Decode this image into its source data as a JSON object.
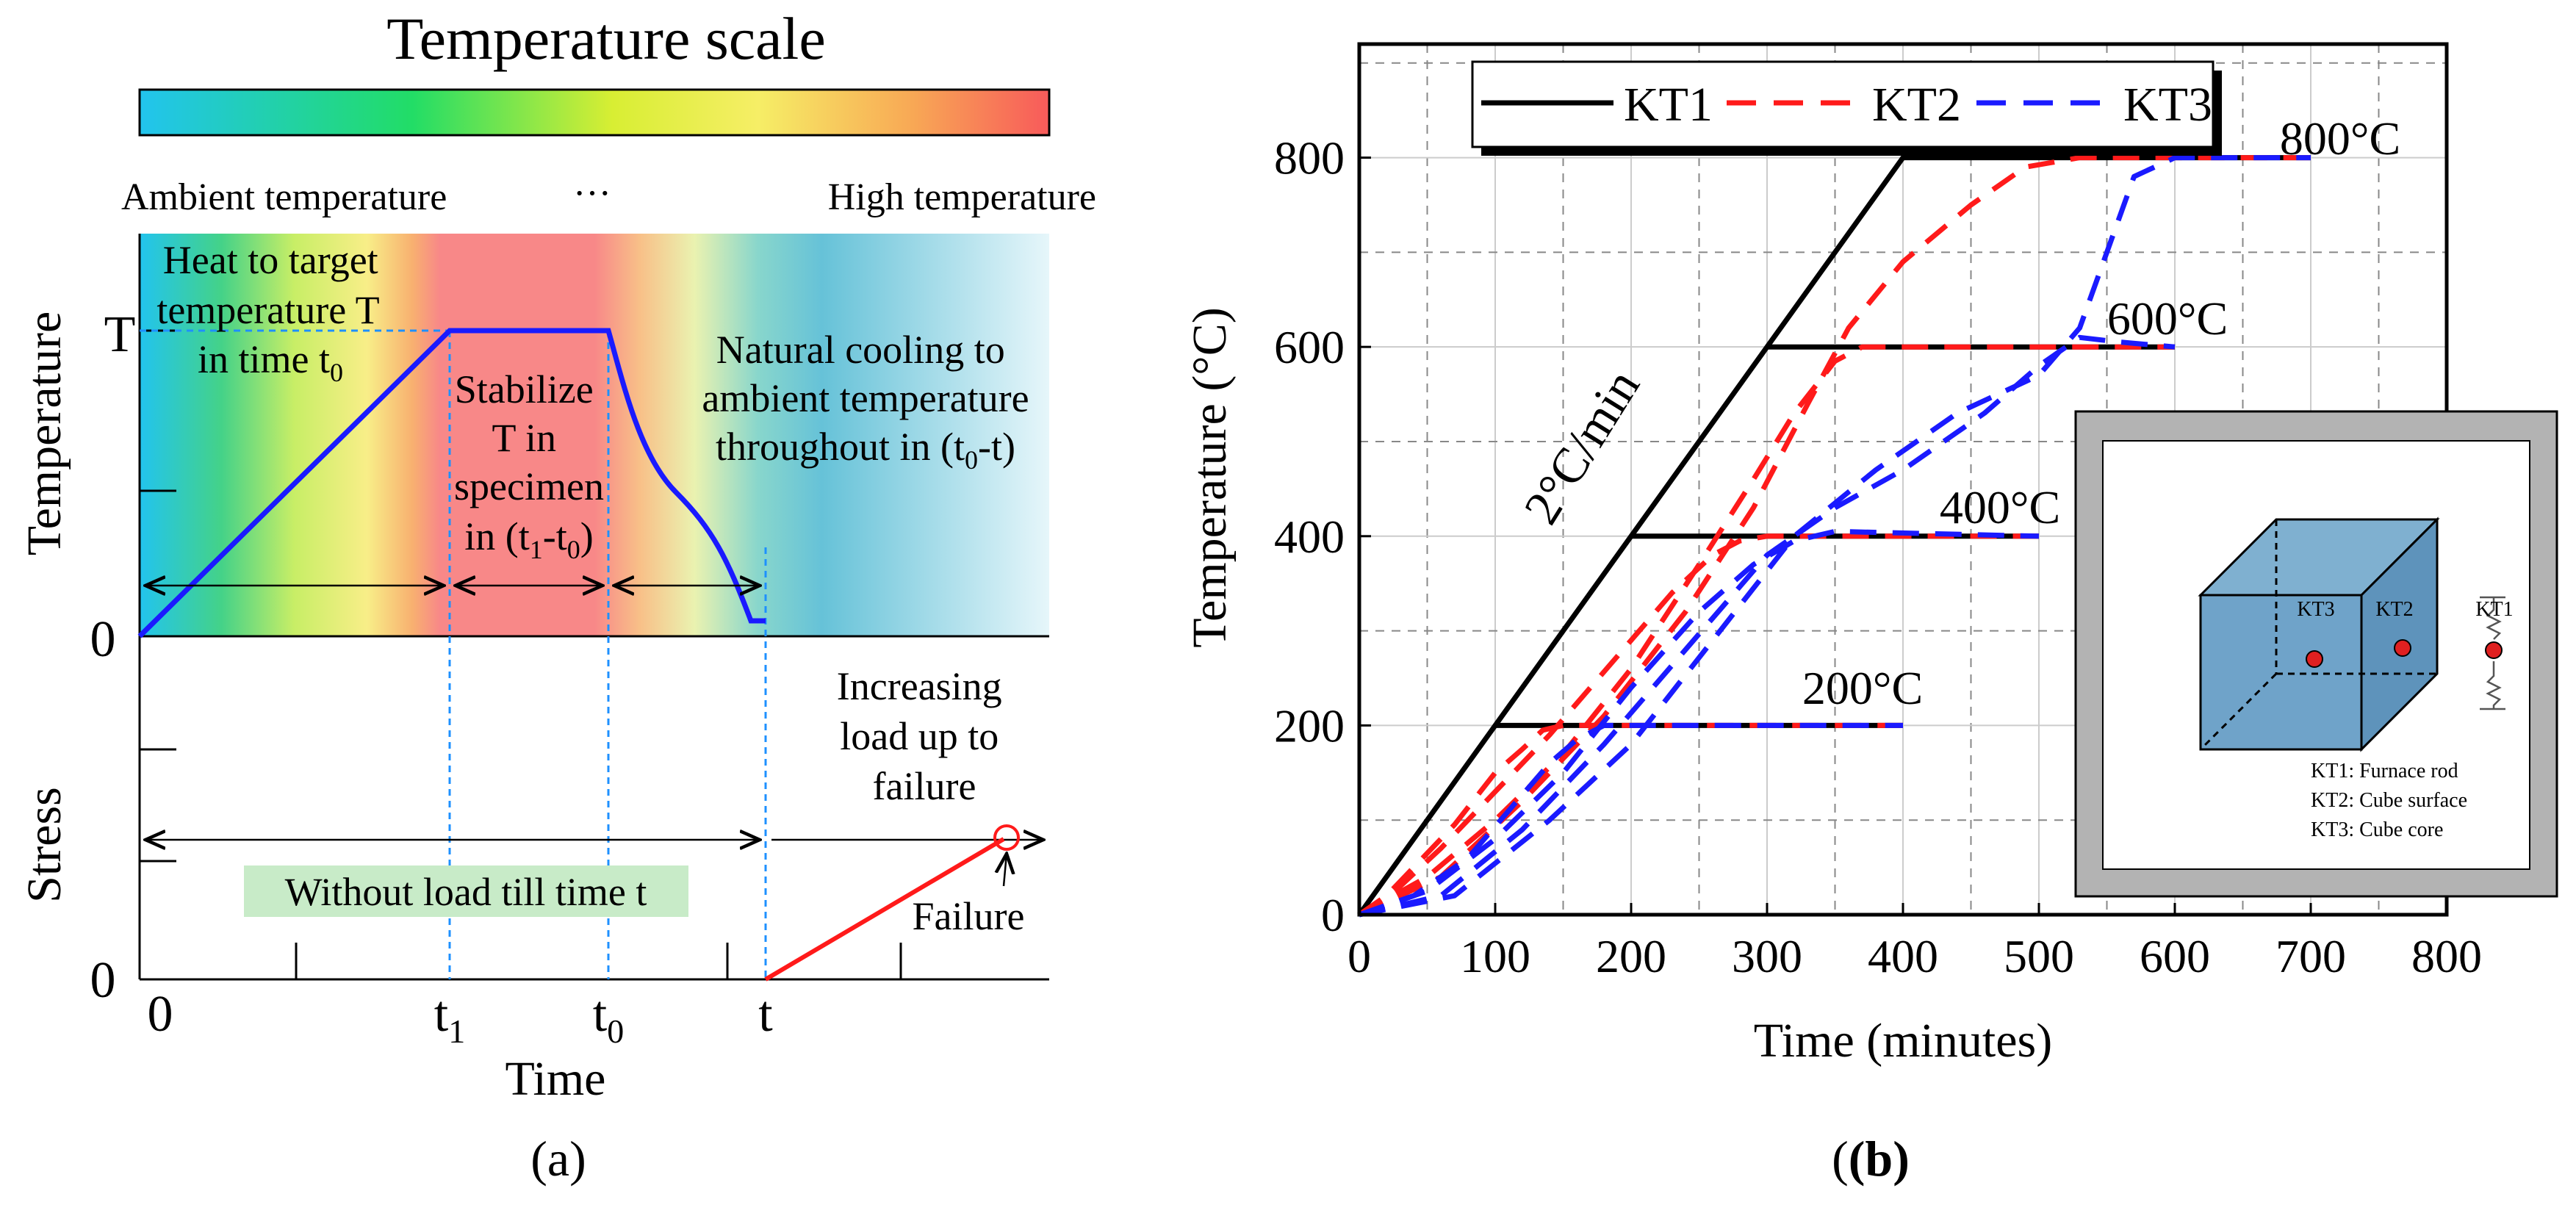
{
  "colors": {
    "blue_line": "#1a1aff",
    "red_line": "#ff1a1a",
    "guide": "#1e90ff",
    "bg_green_label": "#c8ebc8",
    "cube_fill": "#6fa3c9",
    "frame_gray": "#b3b3b3",
    "sensor_red": "#e02020"
  },
  "panel_a": {
    "scale_title": "Temperature scale",
    "scale_left": "Ambient temperature",
    "scale_dots": "···",
    "scale_right": "High temperature",
    "ylabel_top": "Temperature",
    "ylabel_bottom": "Stress",
    "tick_T": "T",
    "tick_0_top": "0",
    "tick_0_bottom": "0",
    "heat_text": [
      "Heat to target",
      "temperature T",
      "in time t"
    ],
    "heat_sub": "0",
    "stab_text": [
      "Stabilize",
      "T in",
      "specimen",
      "in (t"
    ],
    "stab_sub1": "1",
    "stab_mid": "-t",
    "stab_sub2": "0",
    "stab_end": ")",
    "cool_text": [
      "Natural cooling to",
      "ambient temperature",
      "throughout in (t"
    ],
    "cool_sub": "0",
    "cool_end": "-t)",
    "load_text": [
      "Increasing",
      "load up to",
      "failure"
    ],
    "without_load": "Without load till time t",
    "failure": "Failure",
    "x_ticks": {
      "zero": "0",
      "t1_main": "t",
      "t1_sub": "1",
      "t0_main": "t",
      "t0_sub": "0",
      "t": "t"
    },
    "xlabel": "Time",
    "caption": "(a)"
  },
  "chart_data": {
    "type": "line",
    "title": "",
    "xlabel": "Time (minutes)",
    "ylabel": "Temperature (°C)",
    "xlim": [
      0,
      800
    ],
    "ylim": [
      0,
      920
    ],
    "x_ticks": [
      0,
      100,
      200,
      300,
      400,
      500,
      600,
      700,
      800
    ],
    "y_ticks": [
      0,
      200,
      400,
      600,
      800
    ],
    "grid": true,
    "legend": [
      "KT1",
      "KT2",
      "KT3"
    ],
    "rate_label": "2°C/min",
    "level_labels": [
      "200°C",
      "400°C",
      "600°C",
      "800°C"
    ],
    "caption": "(b)",
    "inset": {
      "labels": [
        "KT3",
        "KT2",
        "KT1"
      ],
      "notes": [
        "KT1: Furnace rod",
        "KT2: Cube surface",
        "KT3: Cube core"
      ]
    },
    "series": [
      {
        "name": "KT1",
        "style": "solid",
        "color": "#000000",
        "points": [
          [
            0,
            0
          ],
          [
            100,
            200
          ],
          [
            200,
            400
          ],
          [
            300,
            600
          ],
          [
            400,
            800
          ],
          [
            700,
            800
          ]
        ]
      },
      {
        "name": "KT1",
        "style": "solid",
        "color": "#000000",
        "points": [
          [
            100,
            200
          ],
          [
            400,
            200
          ]
        ]
      },
      {
        "name": "KT1",
        "style": "solid",
        "color": "#000000",
        "points": [
          [
            200,
            400
          ],
          [
            500,
            400
          ]
        ]
      },
      {
        "name": "KT1",
        "style": "solid",
        "color": "#000000",
        "points": [
          [
            300,
            600
          ],
          [
            600,
            600
          ]
        ]
      },
      {
        "name": "KT2",
        "style": "dashed",
        "color": "#ff1a1a",
        "points": [
          [
            0,
            0
          ],
          [
            20,
            20
          ],
          [
            40,
            50
          ],
          [
            70,
            95
          ],
          [
            100,
            150
          ],
          [
            120,
            175
          ],
          [
            135,
            195
          ],
          [
            150,
            200
          ],
          [
            200,
            200
          ],
          [
            400,
            200
          ]
        ]
      },
      {
        "name": "KT2",
        "style": "dashed",
        "color": "#ff1a1a",
        "points": [
          [
            0,
            0
          ],
          [
            30,
            30
          ],
          [
            60,
            70
          ],
          [
            100,
            130
          ],
          [
            140,
            190
          ],
          [
            170,
            240
          ],
          [
            200,
            290
          ],
          [
            230,
            340
          ],
          [
            260,
            380
          ],
          [
            280,
            395
          ],
          [
            300,
            400
          ],
          [
            500,
            400
          ]
        ]
      },
      {
        "name": "KT2",
        "style": "dashed",
        "color": "#ff1a1a",
        "points": [
          [
            0,
            0
          ],
          [
            50,
            40
          ],
          [
            100,
            100
          ],
          [
            150,
            170
          ],
          [
            200,
            260
          ],
          [
            250,
            370
          ],
          [
            290,
            460
          ],
          [
            320,
            530
          ],
          [
            350,
            585
          ],
          [
            370,
            600
          ],
          [
            600,
            600
          ]
        ]
      },
      {
        "name": "KT2",
        "style": "dashed",
        "color": "#ff1a1a",
        "points": [
          [
            0,
            0
          ],
          [
            60,
            40
          ],
          [
            120,
            120
          ],
          [
            180,
            210
          ],
          [
            240,
            320
          ],
          [
            290,
            430
          ],
          [
            330,
            540
          ],
          [
            360,
            620
          ],
          [
            400,
            690
          ],
          [
            450,
            750
          ],
          [
            490,
            790
          ],
          [
            530,
            800
          ],
          [
            700,
            800
          ]
        ]
      },
      {
        "name": "KT3",
        "style": "dashed",
        "color": "#1a1aff",
        "points": [
          [
            0,
            0
          ],
          [
            40,
            20
          ],
          [
            80,
            60
          ],
          [
            110,
            110
          ],
          [
            140,
            160
          ],
          [
            160,
            185
          ],
          [
            180,
            200
          ],
          [
            210,
            200
          ],
          [
            400,
            200
          ]
        ]
      },
      {
        "name": "KT3",
        "style": "dashed",
        "color": "#1a1aff",
        "points": [
          [
            0,
            0
          ],
          [
            50,
            25
          ],
          [
            100,
            80
          ],
          [
            150,
            150
          ],
          [
            200,
            240
          ],
          [
            250,
            320
          ],
          [
            290,
            370
          ],
          [
            320,
            395
          ],
          [
            350,
            405
          ],
          [
            500,
            400
          ]
        ]
      },
      {
        "name": "KT3",
        "style": "dashed",
        "color": "#1a1aff",
        "points": [
          [
            0,
            0
          ],
          [
            60,
            20
          ],
          [
            120,
            90
          ],
          [
            180,
            180
          ],
          [
            240,
            280
          ],
          [
            300,
            380
          ],
          [
            350,
            430
          ],
          [
            400,
            470
          ],
          [
            460,
            530
          ],
          [
            500,
            580
          ],
          [
            530,
            610
          ],
          [
            560,
            605
          ],
          [
            600,
            600
          ]
        ]
      },
      {
        "name": "KT3",
        "style": "dashed",
        "color": "#1a1aff",
        "points": [
          [
            0,
            0
          ],
          [
            70,
            20
          ],
          [
            140,
            100
          ],
          [
            200,
            180
          ],
          [
            260,
            290
          ],
          [
            320,
            400
          ],
          [
            380,
            470
          ],
          [
            440,
            530
          ],
          [
            500,
            570
          ],
          [
            530,
            620
          ],
          [
            550,
            700
          ],
          [
            570,
            780
          ],
          [
            600,
            800
          ],
          [
            700,
            800
          ]
        ]
      }
    ]
  }
}
